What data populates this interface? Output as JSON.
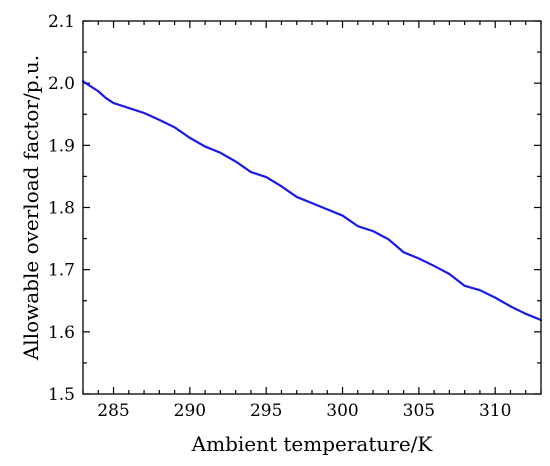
{
  "chart_data": {
    "type": "line",
    "title": "",
    "xlabel": "Ambient temperature/K",
    "ylabel": "Allowable overload factor/p.u.",
    "xlim": [
      283,
      313
    ],
    "ylim": [
      1.5,
      2.1
    ],
    "xticks": [
      285,
      290,
      295,
      300,
      305,
      310
    ],
    "yticks": [
      1.5,
      1.6,
      1.7,
      1.8,
      1.9,
      2.0,
      2.1
    ],
    "grid": false,
    "legend": "none",
    "series": [
      {
        "color": "#1a1ae6",
        "x": [
          283,
          283.5,
          284,
          284.5,
          285,
          286,
          287,
          288,
          289,
          290,
          291,
          292,
          293,
          294,
          295,
          296,
          297,
          298,
          299,
          300,
          301,
          302,
          303,
          304,
          305,
          306,
          307,
          308,
          309,
          310,
          311,
          312,
          313
        ],
        "y": [
          2.003,
          1.995,
          1.987,
          1.976,
          1.968,
          1.96,
          1.952,
          1.941,
          1.929,
          1.912,
          1.898,
          1.888,
          1.874,
          1.857,
          1.849,
          1.834,
          1.817,
          1.807,
          1.797,
          1.787,
          1.77,
          1.762,
          1.749,
          1.728,
          1.718,
          1.706,
          1.693,
          1.674,
          1.667,
          1.655,
          1.641,
          1.629,
          1.619
        ]
      }
    ]
  }
}
